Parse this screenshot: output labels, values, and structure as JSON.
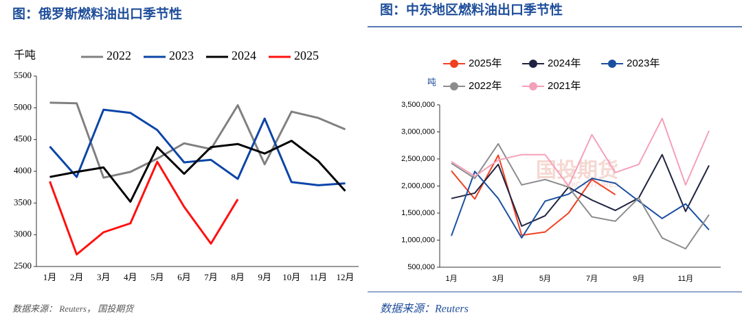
{
  "chart_data": [
    {
      "type": "line",
      "title": "图：俄罗斯燃料油出口季节性",
      "y_label": "千吨",
      "source": "数据来源： Reuters， 国投期货",
      "categories": [
        "1月",
        "2月",
        "3月",
        "4月",
        "5月",
        "6月",
        "7月",
        "8月",
        "9月",
        "10月",
        "11月",
        "12月"
      ],
      "ylim": [
        2500,
        5500
      ],
      "yticks": [
        2500,
        3000,
        3500,
        4000,
        4500,
        5000,
        5500
      ],
      "series": [
        {
          "name": "2022",
          "color": "#808080",
          "values": [
            5080,
            5070,
            3900,
            3990,
            4200,
            4440,
            4350,
            5040,
            4110,
            4940,
            4840,
            4660
          ]
        },
        {
          "name": "2023",
          "color": "#0b45a8",
          "values": [
            4390,
            3910,
            4970,
            4920,
            4650,
            4140,
            4180,
            3880,
            4830,
            3830,
            3780,
            3810
          ]
        },
        {
          "name": "2024",
          "color": "#000000",
          "values": [
            3910,
            3990,
            4060,
            3520,
            4380,
            3960,
            4380,
            4430,
            4280,
            4480,
            4160,
            3690
          ]
        },
        {
          "name": "2025",
          "color": "#ff1010",
          "values": [
            3840,
            2690,
            3040,
            3180,
            4150,
            3440,
            2860,
            3560,
            null,
            null,
            null,
            null
          ]
        }
      ]
    },
    {
      "type": "line",
      "title": "图：中东地区燃料油出口季节性",
      "y_label": "吨",
      "source": "数据来源：Reuters",
      "watermark": "国投期货",
      "watermark_sub": "SDIC FUTURES",
      "categories": [
        "1月",
        null,
        "3月",
        null,
        "5月",
        null,
        "7月",
        null,
        "9月",
        null,
        "11月",
        null
      ],
      "ylim": [
        500000,
        3500000
      ],
      "yticks": [
        {
          "value": 500000,
          "label": "500,000"
        },
        {
          "value": 1000000,
          "label": "1,000,000"
        },
        {
          "value": 1500000,
          "label": "1,500,000"
        },
        {
          "value": 2000000,
          "label": "2,000,000"
        },
        {
          "value": 2500000,
          "label": "2,500,000"
        },
        {
          "value": 3000000,
          "label": "3,000,000"
        },
        {
          "value": 3500000,
          "label": "3,500,000"
        }
      ],
      "series": [
        {
          "name": "2025年",
          "color": "#f04020",
          "values": [
            2280000,
            1760000,
            2570000,
            1090000,
            1150000,
            1500000,
            2120000,
            1840000,
            null,
            null,
            null,
            null
          ]
        },
        {
          "name": "2024年",
          "color": "#1f2240",
          "values": [
            1770000,
            1870000,
            2400000,
            1260000,
            1450000,
            1980000,
            1740000,
            1550000,
            1780000,
            2580000,
            1530000,
            2380000
          ]
        },
        {
          "name": "2023年",
          "color": "#1a4fa0",
          "values": [
            1080000,
            2270000,
            1770000,
            1040000,
            1720000,
            1850000,
            2140000,
            2050000,
            1720000,
            1400000,
            1670000,
            1190000
          ]
        },
        {
          "name": "2022年",
          "color": "#8c8c8c",
          "values": [
            2420000,
            2140000,
            2780000,
            2020000,
            2120000,
            1980000,
            1430000,
            1350000,
            1780000,
            1040000,
            840000,
            1470000
          ]
        },
        {
          "name": "2021年",
          "color": "#f4a0b8",
          "values": [
            2450000,
            2180000,
            2480000,
            2580000,
            2580000,
            2000000,
            2950000,
            2250000,
            2400000,
            3250000,
            2020000,
            3020000
          ]
        }
      ]
    }
  ]
}
